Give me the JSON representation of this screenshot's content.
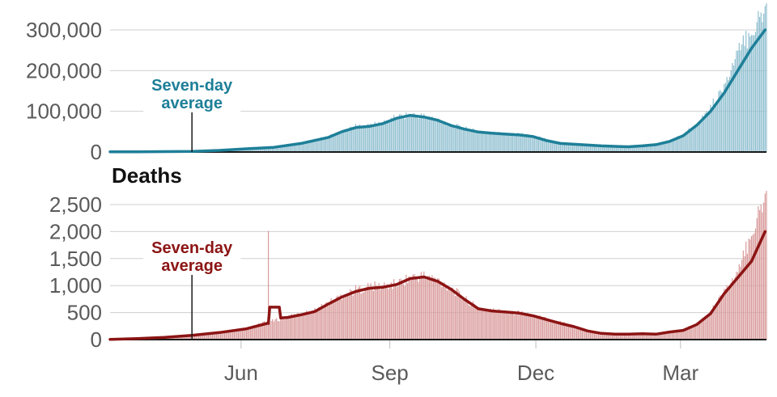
{
  "chart_data": [
    {
      "type": "bar",
      "title": "",
      "xlabel": "",
      "ylabel": "",
      "ylim": [
        0,
        300000
      ],
      "y_ticks": [
        {
          "value": 0,
          "label": "0"
        },
        {
          "value": 100000,
          "label": "100,000"
        },
        {
          "value": 200000,
          "label": "200,000"
        },
        {
          "value": 300000,
          "label": "300,000"
        }
      ],
      "colors": {
        "bar": "#8fbfd0",
        "line": "#1e7f98"
      },
      "annotation": {
        "text_line1": "Seven-day",
        "text_line2": "average",
        "at_day": 60,
        "at_value": 0
      },
      "series": [
        {
          "kind": "bars",
          "days": [
            0,
            20,
            40,
            60,
            80,
            100,
            120,
            140,
            160,
            170,
            180,
            190,
            200,
            210,
            220,
            230,
            240,
            250,
            260,
            270,
            280,
            290,
            300,
            310,
            320,
            330,
            340,
            350,
            360,
            370,
            380,
            390,
            400,
            410,
            420,
            430,
            440,
            450,
            460,
            470,
            480,
            481
          ],
          "values": [
            300,
            600,
            1200,
            1800,
            4200,
            8500,
            12000,
            22000,
            38000,
            52000,
            63000,
            65000,
            72000,
            86000,
            92000,
            88000,
            80000,
            66000,
            58000,
            50000,
            47000,
            45000,
            44000,
            40000,
            30000,
            22000,
            20000,
            19000,
            16000,
            15000,
            14000,
            16000,
            20000,
            28000,
            42000,
            70000,
            110000,
            160000,
            240000,
            300000,
            345000,
            345000
          ]
        },
        {
          "kind": "line",
          "days": [
            0,
            20,
            40,
            60,
            80,
            100,
            120,
            140,
            160,
            170,
            180,
            190,
            200,
            210,
            220,
            230,
            240,
            250,
            260,
            270,
            280,
            290,
            300,
            310,
            320,
            330,
            340,
            350,
            360,
            370,
            380,
            390,
            400,
            410,
            420,
            430,
            440,
            450,
            460,
            470,
            480
          ],
          "values": [
            300,
            500,
            900,
            1500,
            4000,
            8000,
            11500,
            21000,
            36000,
            50000,
            60000,
            63000,
            70000,
            83000,
            90000,
            86000,
            78000,
            65000,
            56000,
            49000,
            46000,
            44000,
            42000,
            38000,
            28000,
            21000,
            19000,
            17000,
            15000,
            14000,
            13000,
            15000,
            18000,
            26000,
            40000,
            66000,
            100000,
            145000,
            200000,
            255000,
            300000
          ]
        }
      ]
    },
    {
      "type": "bar",
      "title": "Deaths",
      "xlabel": "",
      "ylabel": "",
      "ylim": [
        0,
        2500
      ],
      "y_ticks": [
        {
          "value": 0,
          "label": "0"
        },
        {
          "value": 500,
          "label": "500"
        },
        {
          "value": 1000,
          "label": "1,000"
        },
        {
          "value": 1500,
          "label": "1,500"
        },
        {
          "value": 2000,
          "label": "2,000"
        },
        {
          "value": 2500,
          "label": "2,500"
        }
      ],
      "colors": {
        "bar": "#d99a9a",
        "line": "#8c1414"
      },
      "annotation": {
        "text_line1": "Seven-day",
        "text_line2": "average",
        "at_day": 60,
        "at_value": 0
      },
      "series": [
        {
          "kind": "bars",
          "days": [
            0,
            20,
            40,
            60,
            80,
            100,
            115,
            116,
            117,
            130,
            140,
            150,
            160,
            170,
            180,
            190,
            200,
            210,
            220,
            230,
            240,
            250,
            260,
            270,
            280,
            290,
            300,
            310,
            320,
            330,
            340,
            350,
            360,
            370,
            380,
            390,
            400,
            410,
            420,
            430,
            440,
            450,
            460,
            470,
            480,
            481
          ],
          "values": [
            5,
            20,
            40,
            80,
            130,
            200,
            330,
            2000,
            330,
            420,
            470,
            540,
            680,
            820,
            920,
            980,
            990,
            1030,
            1150,
            1180,
            1100,
            950,
            750,
            580,
            540,
            520,
            500,
            450,
            380,
            320,
            250,
            170,
            120,
            100,
            100,
            110,
            100,
            150,
            180,
            300,
            500,
            900,
            1200,
            2000,
            2600,
            2600
          ]
        },
        {
          "kind": "line",
          "days": [
            0,
            20,
            40,
            60,
            80,
            100,
            115,
            116,
            117,
            124,
            125,
            130,
            140,
            150,
            160,
            170,
            180,
            190,
            200,
            210,
            220,
            230,
            240,
            250,
            260,
            270,
            280,
            290,
            300,
            310,
            320,
            330,
            340,
            350,
            360,
            370,
            380,
            390,
            400,
            410,
            420,
            430,
            440,
            450,
            460,
            470,
            480
          ],
          "values": [
            5,
            20,
            40,
            80,
            130,
            200,
            300,
            300,
            600,
            600,
            400,
            410,
            460,
            520,
            660,
            790,
            890,
            950,
            970,
            1020,
            1130,
            1160,
            1080,
            930,
            740,
            570,
            530,
            510,
            490,
            440,
            370,
            300,
            240,
            160,
            115,
            100,
            100,
            110,
            100,
            140,
            170,
            280,
            480,
            850,
            1150,
            1450,
            2000
          ]
        }
      ]
    }
  ],
  "x_axis": {
    "day_range": [
      0,
      481
    ],
    "ticks": [
      {
        "day": 96,
        "label": "Jun"
      },
      {
        "day": 205,
        "label": "Sep"
      },
      {
        "day": 312,
        "label": "Dec"
      },
      {
        "day": 418,
        "label": "Mar"
      }
    ]
  }
}
